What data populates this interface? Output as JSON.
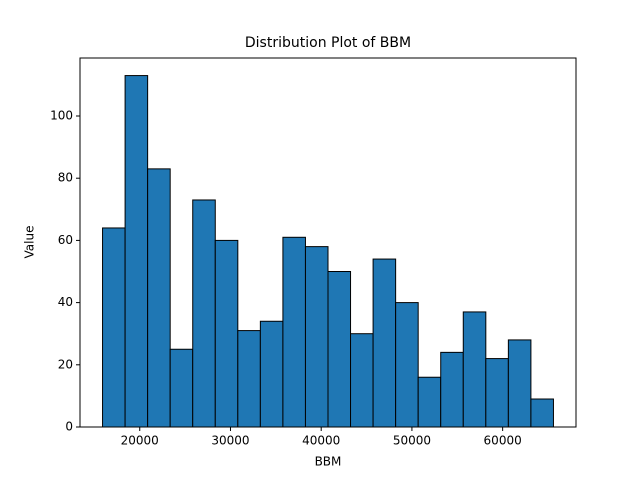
{
  "chart_data": {
    "type": "histogram",
    "title": "Distribution Plot of BBM",
    "x_label": "BBM",
    "y_label": "Value",
    "bins": [
      15900,
      18385,
      20870,
      23355,
      25840,
      28325,
      30810,
      33295,
      35780,
      38265,
      40750,
      43235,
      45720,
      48205,
      50690,
      53175,
      55660,
      58145,
      60630,
      63115,
      65600
    ],
    "values": [
      64,
      113,
      83,
      25,
      73,
      60,
      31,
      34,
      61,
      58,
      50,
      30,
      54,
      40,
      16,
      24,
      37,
      22,
      28,
      9
    ],
    "color": "#1f77b4",
    "edge_color": "#000000",
    "xlim": [
      13415,
      68085
    ],
    "xticks": [
      20000,
      30000,
      40000,
      50000,
      60000
    ],
    "ylim": [
      0,
      118.65
    ],
    "yticks": [
      0,
      20,
      40,
      60,
      80,
      100
    ]
  }
}
